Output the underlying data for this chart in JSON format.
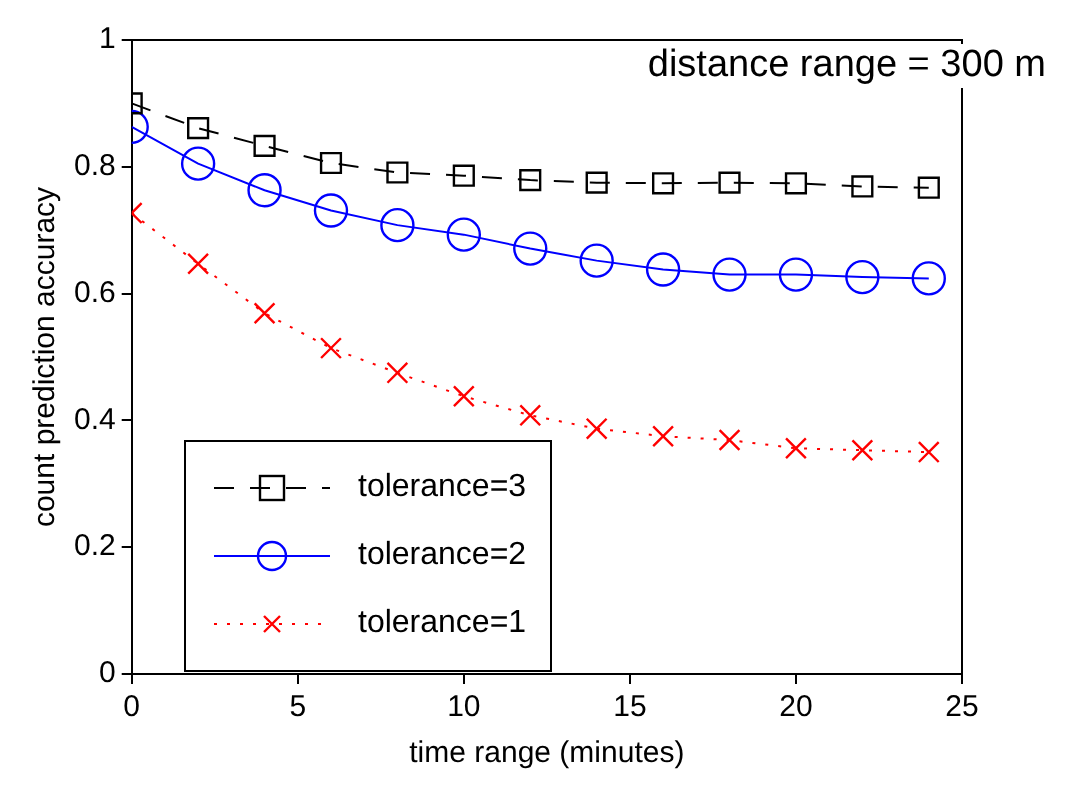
{
  "chart_data": {
    "type": "line",
    "xlabel": "time range (minutes)",
    "ylabel": "count prediction accuracy",
    "annotations": [
      "distance range = 300 m"
    ],
    "x": [
      0,
      2,
      4,
      6,
      8,
      10,
      12,
      14,
      16,
      18,
      20,
      22,
      24
    ],
    "series": [
      {
        "name": "tolerance=3",
        "color": "#000000",
        "marker": "square",
        "line_style": "dashed",
        "values": [
          0.9,
          0.861,
          0.833,
          0.806,
          0.791,
          0.786,
          0.779,
          0.775,
          0.774,
          0.775,
          0.774,
          0.769,
          0.767
        ]
      },
      {
        "name": "tolerance=2",
        "color": "#0000ff",
        "marker": "circle",
        "line_style": "solid",
        "values": [
          0.863,
          0.805,
          0.763,
          0.731,
          0.708,
          0.693,
          0.671,
          0.652,
          0.638,
          0.63,
          0.63,
          0.626,
          0.624
        ]
      },
      {
        "name": "tolerance=1",
        "color": "#ff0000",
        "marker": "cross",
        "line_style": "dotted",
        "values": [
          0.727,
          0.647,
          0.569,
          0.514,
          0.475,
          0.438,
          0.408,
          0.387,
          0.375,
          0.369,
          0.356,
          0.353,
          0.35
        ]
      }
    ],
    "xlim": [
      0,
      25
    ],
    "xticks": [
      0,
      5,
      10,
      15,
      20,
      25
    ],
    "ylim": [
      0,
      1
    ],
    "yticks": [
      0,
      0.2,
      0.4,
      0.6,
      0.8,
      1
    ],
    "grid": false,
    "legend": "bottom left"
  }
}
